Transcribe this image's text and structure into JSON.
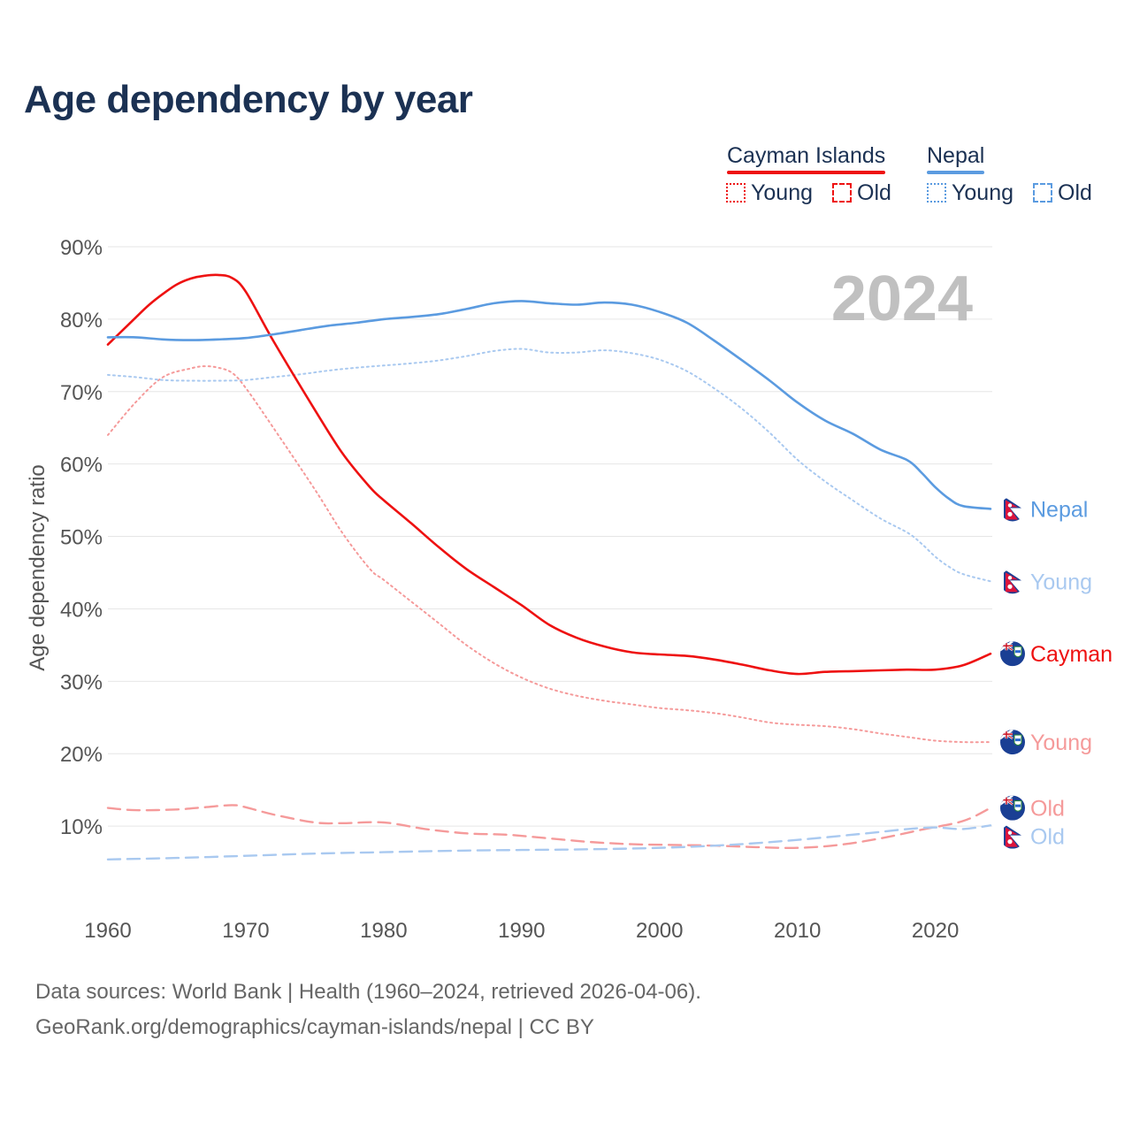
{
  "title": "Age dependency by year",
  "source_line1": "Data sources: World Bank | Health (1960–2024, retrieved 2026-04-06).",
  "source_line2": "GeoRank.org/demographics/cayman-islands/nepal | CC BY",
  "legend": {
    "countries": [
      {
        "name": "Cayman Islands",
        "color": "#ee1111"
      },
      {
        "name": "Nepal",
        "color": "#5b9be0"
      }
    ],
    "young_label": "Young",
    "old_label": "Old"
  },
  "colors": {
    "cayman_total": "#ee1111",
    "cayman_sub": "#f59a9a",
    "nepal_total": "#5b9be0",
    "nepal_sub": "#a9c9f0",
    "grid": "#e6e6e6",
    "year_watermark": "#c0c0c0"
  },
  "chart_data": {
    "type": "line",
    "title": "Age dependency by year",
    "year_display": "2024",
    "xlabel": "",
    "ylabel": "Age dependency ratio",
    "xlim": [
      1960,
      2024
    ],
    "ylim": [
      0,
      90
    ],
    "x_ticks": [
      1960,
      1970,
      1980,
      1990,
      2000,
      2010,
      2020
    ],
    "x_tick_labels": [
      "1960",
      "1970",
      "1980",
      "1990",
      "2000",
      "2010",
      "2020"
    ],
    "y_ticks": [
      10,
      20,
      30,
      40,
      50,
      60,
      70,
      80,
      90
    ],
    "y_tick_labels": [
      "10%",
      "20%",
      "30%",
      "40%",
      "50%",
      "60%",
      "70%",
      "80%",
      "90%"
    ],
    "series": [
      {
        "name": "Cayman Islands Total",
        "end_label": "Cayman",
        "country": "Cayman Islands",
        "style": "solid",
        "x": [
          1960,
          1962,
          1963,
          1964,
          1965,
          1966,
          1967,
          1968,
          1969,
          1970,
          1972,
          1975,
          1977,
          1979,
          1980,
          1982,
          1984,
          1986,
          1988,
          1990,
          1992,
          1994,
          1996,
          1998,
          2000,
          2002,
          2004,
          2006,
          2008,
          2010,
          2012,
          2014,
          2016,
          2018,
          2020,
          2022,
          2024
        ],
        "values": [
          76.5,
          80.2,
          82.0,
          83.5,
          84.8,
          85.6,
          86.0,
          86.1,
          85.7,
          83.8,
          77.0,
          67.5,
          61.5,
          56.8,
          55.0,
          51.8,
          48.5,
          45.5,
          43.0,
          40.5,
          37.8,
          36.0,
          34.8,
          34.0,
          33.7,
          33.5,
          33.0,
          32.3,
          31.5,
          31.0,
          31.3,
          31.4,
          31.5,
          31.6,
          31.6,
          32.2,
          33.8
        ]
      },
      {
        "name": "Cayman Islands Young",
        "end_label": "Young",
        "country": "Cayman Islands",
        "style": "dotted",
        "x": [
          1960,
          1962,
          1964,
          1966,
          1967,
          1968,
          1969,
          1970,
          1972,
          1975,
          1977,
          1979,
          1980,
          1982,
          1984,
          1986,
          1988,
          1990,
          1992,
          1994,
          1996,
          1998,
          2000,
          2002,
          2004,
          2006,
          2008,
          2010,
          2012,
          2014,
          2016,
          2018,
          2020,
          2022,
          2024
        ],
        "values": [
          64.0,
          68.5,
          72.0,
          73.2,
          73.5,
          73.3,
          72.6,
          70.5,
          65.0,
          56.5,
          50.5,
          45.5,
          44.0,
          41.0,
          38.0,
          35.0,
          32.5,
          30.5,
          29.0,
          28.0,
          27.3,
          26.8,
          26.3,
          26.0,
          25.6,
          25.0,
          24.3,
          24.0,
          23.8,
          23.4,
          22.8,
          22.3,
          21.8,
          21.6,
          21.6
        ]
      },
      {
        "name": "Cayman Islands Old",
        "end_label": "Old",
        "country": "Cayman Islands",
        "style": "dashed",
        "x": [
          1960,
          1962,
          1965,
          1967,
          1969,
          1970,
          1972,
          1975,
          1977,
          1980,
          1983,
          1986,
          1989,
          1992,
          1995,
          1998,
          2001,
          2004,
          2007,
          2010,
          2013,
          2016,
          2019,
          2022,
          2024
        ],
        "values": [
          12.5,
          12.2,
          12.3,
          12.6,
          12.9,
          12.6,
          11.6,
          10.5,
          10.4,
          10.5,
          9.6,
          9.0,
          8.8,
          8.3,
          7.8,
          7.5,
          7.4,
          7.3,
          7.1,
          7.0,
          7.4,
          8.3,
          9.5,
          10.7,
          12.5
        ]
      },
      {
        "name": "Nepal Total",
        "end_label": "Nepal",
        "country": "Nepal",
        "style": "solid",
        "x": [
          1960,
          1962,
          1964,
          1966,
          1968,
          1970,
          1972,
          1974,
          1976,
          1978,
          1980,
          1982,
          1984,
          1986,
          1988,
          1990,
          1992,
          1994,
          1996,
          1998,
          2000,
          2002,
          2004,
          2006,
          2008,
          2010,
          2012,
          2014,
          2016,
          2018,
          2019,
          2020,
          2021,
          2022,
          2024
        ],
        "values": [
          77.5,
          77.5,
          77.2,
          77.1,
          77.2,
          77.4,
          77.9,
          78.5,
          79.1,
          79.5,
          80.0,
          80.3,
          80.7,
          81.4,
          82.2,
          82.5,
          82.2,
          82.0,
          82.3,
          82.0,
          81.0,
          79.5,
          77.0,
          74.3,
          71.5,
          68.5,
          66.0,
          64.2,
          62.0,
          60.5,
          58.8,
          56.8,
          55.2,
          54.2,
          53.8
        ]
      },
      {
        "name": "Nepal Young",
        "end_label": "Young",
        "country": "Nepal",
        "style": "dotted",
        "x": [
          1960,
          1962,
          1964,
          1966,
          1968,
          1970,
          1972,
          1974,
          1976,
          1978,
          1980,
          1982,
          1984,
          1986,
          1988,
          1990,
          1992,
          1994,
          1996,
          1998,
          2000,
          2002,
          2004,
          2006,
          2008,
          2010,
          2012,
          2014,
          2016,
          2018,
          2019,
          2020,
          2021,
          2022,
          2024
        ],
        "values": [
          72.3,
          72.0,
          71.6,
          71.5,
          71.5,
          71.6,
          72.0,
          72.4,
          72.9,
          73.3,
          73.6,
          73.9,
          74.3,
          74.9,
          75.6,
          75.9,
          75.4,
          75.4,
          75.7,
          75.3,
          74.4,
          72.8,
          70.4,
          67.6,
          64.3,
          60.6,
          57.6,
          55.0,
          52.5,
          50.5,
          49.0,
          47.2,
          45.8,
          44.8,
          43.8
        ]
      },
      {
        "name": "Nepal Old",
        "end_label": "Old",
        "country": "Nepal",
        "style": "dashed",
        "x": [
          1960,
          1965,
          1970,
          1975,
          1980,
          1985,
          1990,
          1995,
          2000,
          2005,
          2010,
          2015,
          2018,
          2020,
          2022,
          2024
        ],
        "values": [
          5.4,
          5.6,
          5.9,
          6.2,
          6.4,
          6.6,
          6.7,
          6.8,
          7.0,
          7.4,
          8.1,
          9.0,
          9.6,
          9.8,
          9.6,
          10.1
        ]
      }
    ]
  }
}
